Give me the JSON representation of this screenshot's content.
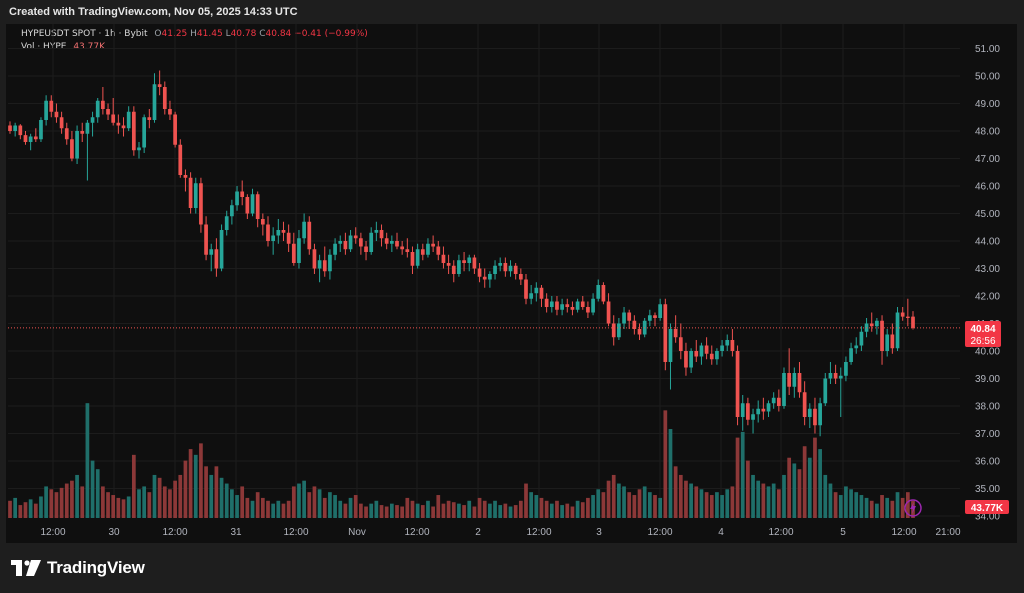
{
  "header": {
    "text": "Created with TradingView.com, Nov 05, 2025 14:33 UTC"
  },
  "legend": {
    "symbol": "HYPEUSDT SPOT · 1h · Bybit",
    "o_label": "O",
    "o_value": "41.25",
    "h_label": "H",
    "h_value": "41.45",
    "l_label": "L",
    "l_value": "40.78",
    "c_label": "C",
    "c_value": "40.84",
    "change": "−0.41 (−0.99%)",
    "vol_label": "Vol · HYPE",
    "vol_value": "43.77K"
  },
  "price_tag": {
    "price": "40.84",
    "countdown": "26:56"
  },
  "vol_tag": {
    "value": "43.77K"
  },
  "logo": {
    "text": "TradingView"
  },
  "colors": {
    "up": "#26a69a",
    "down": "#ef5350",
    "up_vol": "#1f6f6a",
    "down_vol": "#8c3838",
    "background": "#0f0f0f",
    "grid": "#1c1c1c",
    "axis_text": "#b2b5be",
    "price_line": "#ef5350",
    "tag": "#f23645"
  },
  "chart_data": {
    "type": "candlestick",
    "symbol": "HYPEUSDT SPOT",
    "interval": "1h",
    "exchange": "Bybit",
    "y_ticks": [
      "51.00",
      "50.00",
      "49.00",
      "48.00",
      "47.00",
      "46.00",
      "45.00",
      "44.00",
      "43.00",
      "42.00",
      "41.00",
      "40.00",
      "39.00",
      "38.00",
      "37.00",
      "36.00",
      "35.00",
      "34.00"
    ],
    "ylim": [
      33.9,
      51.3
    ],
    "x_ticks": [
      "12:00",
      "30",
      "12:00",
      "31",
      "12:00",
      "Nov",
      "12:00",
      "2",
      "12:00",
      "3",
      "12:00",
      "4",
      "12:00",
      "5",
      "12:00",
      "21:00"
    ],
    "last_price": 40.84,
    "grid": true,
    "candles_ohlcv": [
      [
        48.2,
        48.35,
        47.9,
        48.0,
        12
      ],
      [
        48.0,
        48.3,
        47.8,
        48.2,
        14
      ],
      [
        48.2,
        48.25,
        47.7,
        47.85,
        9
      ],
      [
        47.85,
        48.0,
        47.5,
        47.6,
        11
      ],
      [
        47.6,
        47.9,
        47.3,
        47.8,
        13
      ],
      [
        47.8,
        48.1,
        47.6,
        47.7,
        10
      ],
      [
        47.7,
        48.5,
        47.6,
        48.4,
        15
      ],
      [
        48.4,
        49.3,
        48.2,
        49.1,
        22
      ],
      [
        49.1,
        49.3,
        48.5,
        48.7,
        20
      ],
      [
        48.7,
        49.0,
        48.3,
        48.5,
        18
      ],
      [
        48.5,
        48.7,
        47.9,
        48.1,
        21
      ],
      [
        48.1,
        48.3,
        47.5,
        47.7,
        24
      ],
      [
        47.7,
        48.0,
        46.9,
        47.0,
        26
      ],
      [
        47.0,
        48.2,
        46.8,
        48.0,
        30
      ],
      [
        48.0,
        48.3,
        47.6,
        47.9,
        22
      ],
      [
        47.9,
        48.4,
        46.2,
        48.3,
        80
      ],
      [
        48.3,
        48.7,
        47.8,
        48.5,
        40
      ],
      [
        48.5,
        49.2,
        48.3,
        49.1,
        34
      ],
      [
        49.1,
        49.6,
        48.6,
        48.8,
        22
      ],
      [
        48.8,
        49.0,
        48.4,
        48.6,
        18
      ],
      [
        48.6,
        49.2,
        48.2,
        48.3,
        16
      ],
      [
        48.3,
        48.6,
        47.9,
        48.2,
        14
      ],
      [
        48.2,
        48.5,
        47.8,
        48.1,
        13
      ],
      [
        48.1,
        48.9,
        48.0,
        48.7,
        15
      ],
      [
        48.7,
        48.9,
        47.1,
        47.3,
        44
      ],
      [
        47.3,
        47.6,
        47.0,
        47.4,
        20
      ],
      [
        47.4,
        48.6,
        47.2,
        48.5,
        22
      ],
      [
        48.5,
        48.8,
        48.1,
        48.4,
        18
      ],
      [
        48.4,
        50.1,
        48.3,
        49.7,
        30
      ],
      [
        49.7,
        50.2,
        49.3,
        49.6,
        28
      ],
      [
        49.6,
        49.8,
        48.6,
        48.8,
        22
      ],
      [
        48.8,
        49.1,
        48.4,
        48.6,
        20
      ],
      [
        48.6,
        48.7,
        47.4,
        47.5,
        26
      ],
      [
        47.5,
        47.7,
        46.3,
        46.4,
        30
      ],
      [
        46.4,
        46.6,
        45.8,
        46.3,
        40
      ],
      [
        46.3,
        46.5,
        45.0,
        45.2,
        48
      ],
      [
        45.2,
        46.3,
        45.0,
        46.1,
        44
      ],
      [
        46.1,
        46.3,
        44.3,
        44.6,
        52
      ],
      [
        44.6,
        44.9,
        43.3,
        43.5,
        36
      ],
      [
        43.5,
        43.9,
        42.9,
        43.7,
        30
      ],
      [
        43.7,
        44.1,
        42.7,
        43.0,
        36
      ],
      [
        43.0,
        44.6,
        42.9,
        44.4,
        28
      ],
      [
        44.4,
        45.1,
        44.2,
        44.9,
        24
      ],
      [
        44.9,
        45.5,
        44.6,
        45.3,
        20
      ],
      [
        45.3,
        46.0,
        45.1,
        45.8,
        16
      ],
      [
        45.8,
        46.2,
        45.3,
        45.6,
        22
      ],
      [
        45.6,
        45.7,
        44.8,
        45.0,
        14
      ],
      [
        45.0,
        45.9,
        44.9,
        45.7,
        12
      ],
      [
        45.7,
        45.8,
        44.5,
        44.8,
        18
      ],
      [
        44.8,
        45.0,
        44.2,
        44.6,
        14
      ],
      [
        44.6,
        44.9,
        43.8,
        44.0,
        12
      ],
      [
        44.0,
        44.5,
        43.5,
        44.2,
        10
      ],
      [
        44.2,
        44.8,
        43.9,
        44.4,
        12
      ],
      [
        44.4,
        44.7,
        44.0,
        44.3,
        10
      ],
      [
        44.3,
        44.6,
        43.6,
        43.9,
        12
      ],
      [
        43.9,
        44.3,
        43.1,
        43.2,
        22
      ],
      [
        43.2,
        44.4,
        43.0,
        44.1,
        24
      ],
      [
        44.1,
        45.0,
        43.9,
        44.7,
        26
      ],
      [
        44.7,
        44.9,
        43.5,
        43.7,
        18
      ],
      [
        43.7,
        43.9,
        42.8,
        43.0,
        22
      ],
      [
        43.0,
        43.5,
        42.5,
        43.3,
        20
      ],
      [
        43.3,
        43.8,
        42.7,
        42.9,
        14
      ],
      [
        42.9,
        43.7,
        42.6,
        43.5,
        18
      ],
      [
        43.5,
        44.1,
        43.3,
        43.9,
        16
      ],
      [
        43.9,
        44.2,
        43.6,
        44.0,
        12
      ],
      [
        44.0,
        44.3,
        43.5,
        43.7,
        10
      ],
      [
        43.7,
        44.4,
        43.6,
        44.2,
        14
      ],
      [
        44.2,
        44.5,
        43.9,
        44.1,
        16
      ],
      [
        44.1,
        44.3,
        43.5,
        43.8,
        10
      ],
      [
        43.8,
        44.0,
        43.3,
        43.6,
        8
      ],
      [
        43.6,
        44.5,
        43.5,
        44.3,
        10
      ],
      [
        44.3,
        44.7,
        44.0,
        44.4,
        12
      ],
      [
        44.4,
        44.6,
        43.8,
        44.1,
        9
      ],
      [
        44.1,
        44.3,
        43.7,
        43.9,
        8
      ],
      [
        43.9,
        44.2,
        43.6,
        44.0,
        10
      ],
      [
        44.0,
        44.3,
        43.7,
        43.8,
        9
      ],
      [
        43.8,
        44.0,
        43.5,
        43.7,
        8
      ],
      [
        43.7,
        44.1,
        43.4,
        43.6,
        14
      ],
      [
        43.6,
        43.8,
        42.8,
        43.1,
        12
      ],
      [
        43.1,
        43.9,
        43.0,
        43.7,
        10
      ],
      [
        43.7,
        43.9,
        43.3,
        43.5,
        9
      ],
      [
        43.5,
        44.1,
        43.4,
        43.9,
        12
      ],
      [
        43.9,
        44.2,
        43.6,
        43.8,
        8
      ],
      [
        43.8,
        44.0,
        43.3,
        43.5,
        16
      ],
      [
        43.5,
        43.8,
        43.0,
        43.2,
        10
      ],
      [
        43.2,
        43.5,
        42.8,
        43.1,
        12
      ],
      [
        43.1,
        43.3,
        42.5,
        42.8,
        11
      ],
      [
        42.8,
        43.5,
        42.7,
        43.3,
        10
      ],
      [
        43.3,
        43.6,
        42.9,
        43.2,
        9
      ],
      [
        43.2,
        43.5,
        42.9,
        43.4,
        12
      ],
      [
        43.4,
        43.5,
        42.8,
        43.0,
        8
      ],
      [
        43.0,
        43.2,
        42.5,
        42.7,
        14
      ],
      [
        42.7,
        43.0,
        42.3,
        42.6,
        12
      ],
      [
        42.6,
        42.9,
        42.3,
        42.8,
        10
      ],
      [
        42.8,
        43.3,
        42.6,
        43.1,
        12
      ],
      [
        43.1,
        43.4,
        42.9,
        43.2,
        9
      ],
      [
        43.2,
        43.4,
        42.7,
        42.9,
        10
      ],
      [
        42.9,
        43.3,
        42.7,
        43.1,
        8
      ],
      [
        43.1,
        43.2,
        42.6,
        42.8,
        9
      ],
      [
        42.8,
        43.0,
        42.4,
        42.6,
        12
      ],
      [
        42.6,
        42.8,
        41.7,
        41.9,
        24
      ],
      [
        41.9,
        42.4,
        41.7,
        42.1,
        18
      ],
      [
        42.1,
        42.5,
        41.8,
        42.3,
        16
      ],
      [
        42.3,
        42.4,
        41.6,
        41.9,
        14
      ],
      [
        41.9,
        42.1,
        41.4,
        41.6,
        12
      ],
      [
        41.6,
        42.0,
        41.4,
        41.8,
        10
      ],
      [
        41.8,
        42.0,
        41.3,
        41.5,
        12
      ],
      [
        41.5,
        41.9,
        41.3,
        41.7,
        9
      ],
      [
        41.7,
        41.9,
        41.4,
        41.6,
        10
      ],
      [
        41.6,
        41.8,
        41.3,
        41.5,
        8
      ],
      [
        41.5,
        41.9,
        41.4,
        41.8,
        12
      ],
      [
        41.8,
        42.0,
        41.5,
        41.6,
        11
      ],
      [
        41.6,
        41.8,
        41.2,
        41.4,
        14
      ],
      [
        41.4,
        42.1,
        41.3,
        41.9,
        16
      ],
      [
        41.9,
        42.6,
        41.8,
        42.4,
        20
      ],
      [
        42.4,
        42.5,
        41.7,
        41.8,
        18
      ],
      [
        41.8,
        42.1,
        40.9,
        41.0,
        26
      ],
      [
        41.0,
        41.3,
        40.2,
        40.5,
        30
      ],
      [
        40.5,
        41.2,
        40.4,
        41.0,
        24
      ],
      [
        41.0,
        41.6,
        40.8,
        41.4,
        22
      ],
      [
        41.4,
        41.5,
        40.8,
        41.1,
        18
      ],
      [
        41.1,
        41.3,
        40.6,
        40.8,
        16
      ],
      [
        40.8,
        41.0,
        40.4,
        40.6,
        20
      ],
      [
        40.6,
        41.2,
        40.5,
        41.1,
        22
      ],
      [
        41.1,
        41.5,
        40.9,
        41.3,
        18
      ],
      [
        41.3,
        41.4,
        40.9,
        41.2,
        16
      ],
      [
        41.2,
        41.9,
        41.1,
        41.7,
        14
      ],
      [
        41.7,
        41.9,
        39.3,
        39.6,
        75
      ],
      [
        39.6,
        41.0,
        38.6,
        40.8,
        62
      ],
      [
        40.8,
        41.3,
        40.3,
        40.5,
        36
      ],
      [
        40.5,
        41.0,
        39.7,
        40.0,
        30
      ],
      [
        40.0,
        40.3,
        39.1,
        39.4,
        26
      ],
      [
        39.4,
        40.1,
        39.2,
        40.0,
        24
      ],
      [
        40.0,
        40.4,
        39.6,
        39.8,
        22
      ],
      [
        39.8,
        40.3,
        39.5,
        40.2,
        20
      ],
      [
        40.2,
        40.5,
        39.7,
        39.9,
        18
      ],
      [
        39.9,
        40.2,
        39.5,
        39.7,
        16
      ],
      [
        39.7,
        40.1,
        39.5,
        40.0,
        18
      ],
      [
        40.0,
        40.4,
        39.8,
        40.2,
        16
      ],
      [
        40.2,
        40.6,
        40.0,
        40.4,
        20
      ],
      [
        40.4,
        40.8,
        39.8,
        40.0,
        22
      ],
      [
        40.0,
        40.2,
        37.3,
        37.6,
        56
      ],
      [
        37.6,
        38.4,
        37.1,
        38.1,
        60
      ],
      [
        38.1,
        38.3,
        37.3,
        37.5,
        40
      ],
      [
        37.5,
        37.9,
        37.0,
        37.7,
        30
      ],
      [
        37.7,
        38.2,
        37.4,
        37.9,
        26
      ],
      [
        37.9,
        38.3,
        37.5,
        37.8,
        24
      ],
      [
        37.8,
        38.2,
        37.6,
        38.1,
        22
      ],
      [
        38.1,
        38.5,
        37.9,
        38.3,
        24
      ],
      [
        38.3,
        38.6,
        37.8,
        38.0,
        20
      ],
      [
        38.0,
        39.4,
        37.9,
        39.2,
        30
      ],
      [
        39.2,
        40.1,
        38.4,
        38.7,
        42
      ],
      [
        38.7,
        39.4,
        38.3,
        39.2,
        38
      ],
      [
        39.2,
        39.6,
        38.3,
        38.5,
        34
      ],
      [
        38.5,
        38.9,
        37.3,
        37.6,
        50
      ],
      [
        37.6,
        38.1,
        37.2,
        37.9,
        42
      ],
      [
        37.9,
        38.3,
        37.0,
        37.3,
        56
      ],
      [
        37.3,
        38.3,
        36.9,
        38.1,
        48
      ],
      [
        38.1,
        39.2,
        38.0,
        39.0,
        30
      ],
      [
        39.0,
        39.6,
        38.8,
        39.2,
        24
      ],
      [
        39.2,
        39.5,
        38.8,
        39.0,
        18
      ],
      [
        39.0,
        39.4,
        37.6,
        39.1,
        16
      ],
      [
        39.1,
        39.8,
        38.9,
        39.6,
        22
      ],
      [
        39.6,
        40.3,
        39.5,
        40.1,
        20
      ],
      [
        40.1,
        40.5,
        39.9,
        40.2,
        18
      ],
      [
        40.2,
        40.9,
        40.0,
        40.7,
        16
      ],
      [
        40.7,
        41.2,
        40.5,
        41.0,
        14
      ],
      [
        41.0,
        41.4,
        40.7,
        40.9,
        12
      ],
      [
        40.9,
        41.2,
        40.6,
        41.1,
        10
      ],
      [
        41.1,
        41.3,
        39.5,
        40.0,
        16
      ],
      [
        40.0,
        40.8,
        39.8,
        40.6,
        14
      ],
      [
        40.6,
        41.0,
        39.9,
        40.1,
        12
      ],
      [
        40.1,
        41.6,
        40.0,
        41.4,
        18
      ],
      [
        41.4,
        41.6,
        41.1,
        41.25,
        14
      ],
      [
        41.25,
        41.9,
        40.9,
        41.2,
        18
      ],
      [
        41.25,
        41.45,
        40.78,
        40.84,
        12
      ]
    ]
  }
}
